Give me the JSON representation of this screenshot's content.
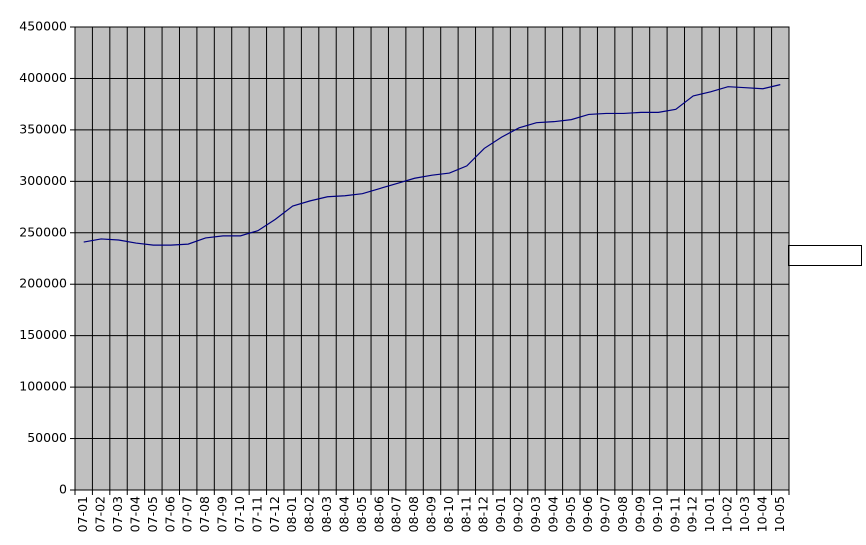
{
  "chart_data": {
    "type": "line",
    "categories": [
      "07-01",
      "07-02",
      "07-03",
      "07-04",
      "07-05",
      "07-06",
      "07-07",
      "07-08",
      "07-09",
      "07-10",
      "07-11",
      "07-12",
      "08-01",
      "08-02",
      "08-03",
      "08-04",
      "08-05",
      "08-06",
      "08-07",
      "08-08",
      "08-09",
      "08-10",
      "08-11",
      "08-12",
      "09-01",
      "09-02",
      "09-03",
      "09-04",
      "09-05",
      "09-06",
      "09-07",
      "09-08",
      "09-09",
      "09-10",
      "09-11",
      "09-12",
      "10-01",
      "10-02",
      "10-03",
      "10-04",
      "10-05"
    ],
    "values": [
      241000,
      244000,
      243000,
      240000,
      238000,
      238000,
      239000,
      245000,
      247000,
      247000,
      252000,
      263000,
      276000,
      281000,
      285000,
      286000,
      288000,
      293000,
      298000,
      303000,
      306000,
      308000,
      315000,
      332000,
      343000,
      352000,
      357000,
      358000,
      360000,
      365000,
      366000,
      366000,
      367000,
      367000,
      370000,
      383000,
      387000,
      392000,
      391000,
      390000,
      394000
    ],
    "color": "#000080",
    "ylim": [
      0,
      450000
    ],
    "yticks": [
      0,
      50000,
      100000,
      150000,
      200000,
      250000,
      300000,
      350000,
      400000,
      450000
    ],
    "grid": true
  }
}
